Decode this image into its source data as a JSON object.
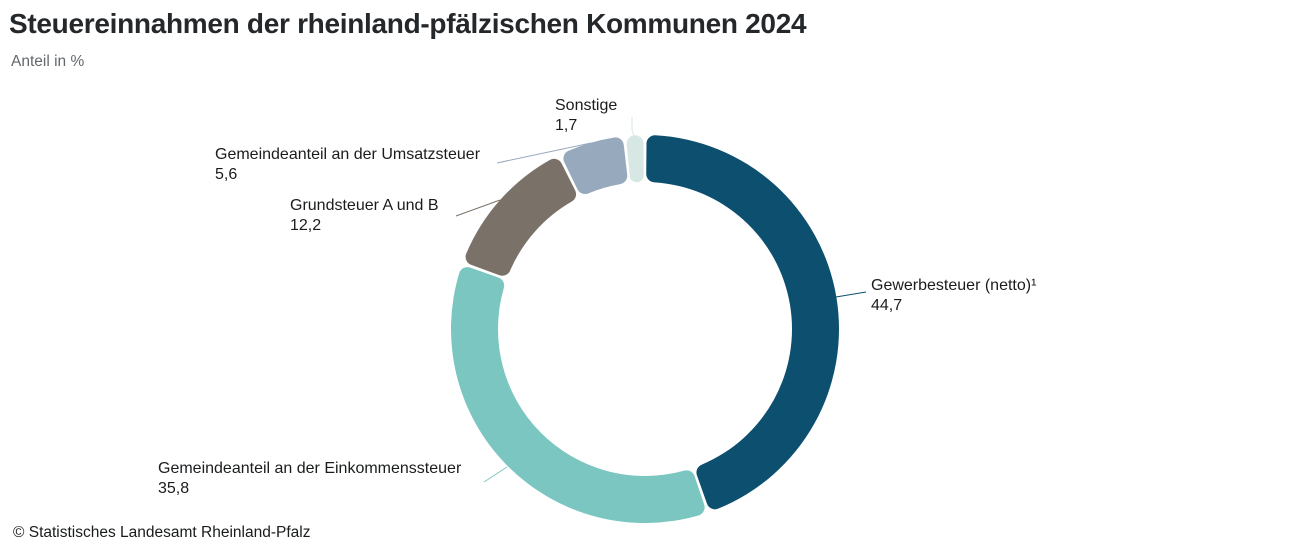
{
  "header": {
    "title": "Steuereinnahmen der rheinland-pfälzischen Kommunen 2024",
    "subtitle": "Anteil in %"
  },
  "footer": {
    "copyright": "© Statistisches Landesamt Rheinland-Pfalz"
  },
  "chart_data": {
    "type": "pie",
    "subtype": "donut",
    "title": "Steuereinnahmen der rheinland-pfälzischen Kommunen 2024",
    "subtitle": "Anteil in %",
    "unit": "%",
    "start_angle_deg": 0,
    "direction": "clockwise",
    "legend": "none",
    "total": 100,
    "segments": [
      {
        "key": "gewerbesteuer",
        "label": "Gewerbesteuer (netto)¹",
        "value": 44.7,
        "display": "44,7",
        "color": "#0d4f6e"
      },
      {
        "key": "einkommenssteuer",
        "label": "Gemeindeanteil an der Einkommenssteuer",
        "value": 35.8,
        "display": "35,8",
        "color": "#7bc6c0"
      },
      {
        "key": "grundsteuer",
        "label": "Grundsteuer A und B",
        "value": 12.2,
        "display": "12,2",
        "color": "#7a7269"
      },
      {
        "key": "umsatzsteuer",
        "label": "Gemeindeanteil an der Umsatzsteuer",
        "value": 5.6,
        "display": "5,6",
        "color": "#97a9bc"
      },
      {
        "key": "sonstige",
        "label": "Sonstige",
        "value": 1.7,
        "display": "1,7",
        "color": "#d7e7e4"
      }
    ],
    "source": "© Statistisches Landesamt Rheinland-Pfalz"
  }
}
